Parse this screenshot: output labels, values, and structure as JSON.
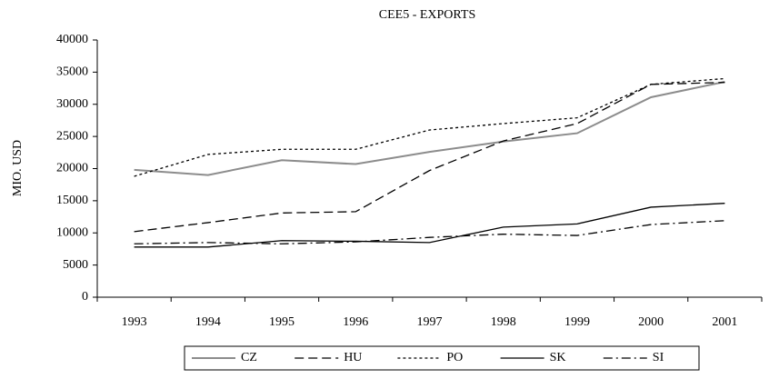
{
  "chart_data": {
    "type": "line",
    "title": "CEE5 - EXPORTS",
    "y_label": "MIO. USD",
    "categories": [
      "1993",
      "1994",
      "1995",
      "1996",
      "1997",
      "1998",
      "1999",
      "2000",
      "2001"
    ],
    "series": [
      {
        "name": "CZ",
        "color": "#8c8c8c",
        "dash": "none",
        "values": [
          19800,
          19000,
          21300,
          20700,
          22600,
          24200,
          25500,
          31100,
          33500
        ]
      },
      {
        "name": "HU",
        "color": "#000000",
        "dash": "10,5",
        "values": [
          10200,
          11600,
          13100,
          13300,
          19700,
          24300,
          27000,
          33100,
          33400
        ]
      },
      {
        "name": "PO",
        "color": "#000000",
        "dash": "3,3",
        "values": [
          18800,
          22200,
          23000,
          23000,
          26000,
          27000,
          27900,
          33100,
          34000
        ]
      },
      {
        "name": "SK",
        "color": "#000000",
        "dash": "none",
        "values": [
          7800,
          7800,
          8800,
          8700,
          8500,
          10900,
          11400,
          14000,
          14600
        ]
      },
      {
        "name": "SI",
        "color": "#000000",
        "dash": "10,4,2,4",
        "values": [
          8300,
          8500,
          8300,
          8600,
          9300,
          9800,
          9600,
          11300,
          11900
        ]
      }
    ],
    "ylim": [
      0,
      40000
    ],
    "yticks": [
      0,
      5000,
      10000,
      15000,
      20000,
      25000,
      30000,
      35000,
      40000
    ],
    "grid": false,
    "legend": "bottom"
  }
}
